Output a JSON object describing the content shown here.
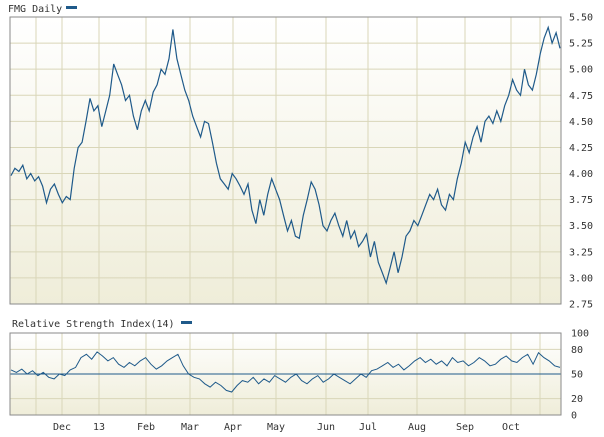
{
  "colors": {
    "line": "#1f5a8a",
    "grid": "#d9d6b8",
    "panel_top": "#ffffff",
    "panel_bottom": "#efedd9",
    "text": "#333333"
  },
  "chart_data": [
    {
      "type": "line",
      "title": "FMG Daily",
      "legend_placement": "top-left",
      "grid": true,
      "y_axis_side": "right",
      "ylim": [
        2.75,
        5.5
      ],
      "y_ticks": [
        "5.50",
        "5.25",
        "5.00",
        "4.75",
        "4.50",
        "4.25",
        "4.00",
        "3.75",
        "3.50",
        "3.25",
        "3.00",
        "2.75"
      ],
      "x_ticks": [
        "Dec",
        "13",
        "Feb",
        "Mar",
        "Apr",
        "May",
        "Jun",
        "Jul",
        "Aug",
        "Sep",
        "Oct"
      ],
      "series": [
        {
          "name": "FMG Daily",
          "values": [
            3.98,
            4.05,
            4.02,
            4.08,
            3.95,
            4.0,
            3.93,
            3.97,
            3.88,
            3.72,
            3.85,
            3.9,
            3.8,
            3.72,
            3.78,
            3.75,
            4.05,
            4.25,
            4.3,
            4.5,
            4.72,
            4.6,
            4.65,
            4.45,
            4.6,
            4.75,
            5.05,
            4.95,
            4.85,
            4.7,
            4.75,
            4.55,
            4.42,
            4.6,
            4.7,
            4.6,
            4.78,
            4.85,
            5.0,
            4.95,
            5.1,
            5.38,
            5.1,
            4.95,
            4.8,
            4.7,
            4.55,
            4.45,
            4.35,
            4.5,
            4.48,
            4.3,
            4.1,
            3.95,
            3.9,
            3.85,
            4.0,
            3.95,
            3.88,
            3.8,
            3.9,
            3.65,
            3.52,
            3.75,
            3.6,
            3.8,
            3.95,
            3.85,
            3.75,
            3.6,
            3.45,
            3.55,
            3.4,
            3.38,
            3.6,
            3.75,
            3.92,
            3.85,
            3.7,
            3.5,
            3.45,
            3.55,
            3.62,
            3.5,
            3.4,
            3.55,
            3.38,
            3.45,
            3.3,
            3.35,
            3.42,
            3.2,
            3.35,
            3.15,
            3.05,
            2.95,
            3.1,
            3.25,
            3.05,
            3.2,
            3.4,
            3.45,
            3.55,
            3.5,
            3.6,
            3.7,
            3.8,
            3.75,
            3.85,
            3.7,
            3.65,
            3.8,
            3.75,
            3.95,
            4.1,
            4.3,
            4.2,
            4.35,
            4.45,
            4.3,
            4.5,
            4.55,
            4.48,
            4.6,
            4.5,
            4.65,
            4.75,
            4.9,
            4.8,
            4.75,
            5.0,
            4.85,
            4.8,
            4.95,
            5.15,
            5.3,
            5.4,
            5.25,
            5.35,
            5.2
          ]
        }
      ]
    },
    {
      "type": "line",
      "title": "Relative Strength Index(14)",
      "legend_placement": "top-left",
      "grid": true,
      "y_axis_side": "right",
      "ylim": [
        0,
        100
      ],
      "y_ticks": [
        "100",
        "80",
        "50",
        "20",
        "0"
      ],
      "reference_line": 50,
      "series": [
        {
          "name": "Relative Strength Index(14)",
          "values": [
            55,
            52,
            56,
            50,
            54,
            48,
            52,
            46,
            44,
            50,
            48,
            55,
            58,
            70,
            74,
            68,
            77,
            72,
            66,
            70,
            62,
            58,
            64,
            60,
            66,
            70,
            62,
            56,
            60,
            66,
            70,
            74,
            60,
            50,
            46,
            44,
            38,
            34,
            40,
            36,
            30,
            28,
            36,
            42,
            40,
            46,
            38,
            44,
            40,
            48,
            44,
            40,
            46,
            50,
            42,
            38,
            44,
            48,
            40,
            44,
            50,
            46,
            42,
            38,
            44,
            50,
            46,
            54,
            56,
            60,
            64,
            58,
            62,
            55,
            60,
            66,
            70,
            64,
            68,
            62,
            66,
            60,
            70,
            64,
            66,
            60,
            64,
            70,
            66,
            60,
            62,
            68,
            72,
            66,
            64,
            70,
            74,
            62,
            76,
            70,
            66,
            60,
            58
          ]
        }
      ]
    }
  ]
}
